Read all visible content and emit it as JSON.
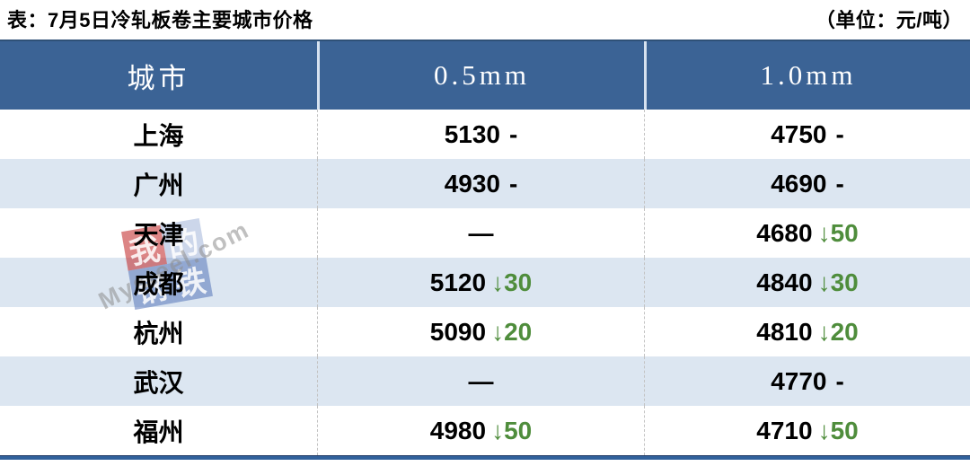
{
  "title": "表：7月5日冷轧板卷主要城市价格",
  "unit": "（单位：元/吨）",
  "columns": [
    "城市",
    "0.5mm",
    "1.0mm"
  ],
  "rows": [
    {
      "city": "上海",
      "p05": "5130",
      "c05": "-",
      "p10": "4750",
      "c10": "-"
    },
    {
      "city": "广州",
      "p05": "4930",
      "c05": "-",
      "p10": "4690",
      "c10": "-"
    },
    {
      "city": "天津",
      "p05": "—",
      "c05": "",
      "p10": "4680",
      "c10": "↓50"
    },
    {
      "city": "成都",
      "p05": "5120",
      "c05": "↓30",
      "p10": "4840",
      "c10": "↓30"
    },
    {
      "city": "杭州",
      "p05": "5090",
      "c05": "↓20",
      "p10": "4810",
      "c10": "↓20"
    },
    {
      "city": "武汉",
      "p05": "—",
      "c05": "",
      "p10": "4770",
      "c10": "-"
    },
    {
      "city": "福州",
      "p05": "4980",
      "c05": "↓50",
      "p10": "4710",
      "c10": "↓50"
    }
  ],
  "watermark": {
    "logo_chars": [
      "我",
      "的",
      "钢",
      "铁"
    ],
    "text": "Mysteel.com"
  },
  "colors": {
    "header_bg": "#3B6395",
    "row_alt_bg": "#DCE6F1",
    "down_green": "#4F8D3C",
    "bottom_border": "#31619C"
  }
}
